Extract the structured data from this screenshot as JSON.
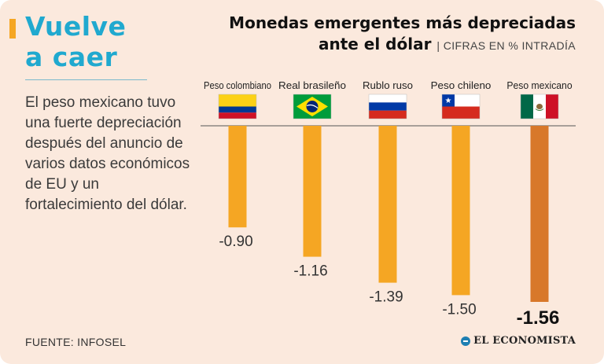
{
  "headline": {
    "line1": "Vuelve",
    "line2": "a caer"
  },
  "description": "El peso mexicano tuvo una fuerte depreciación después del anuncio de varios datos económicos de EU y un fortalecimiento del dólar.",
  "source": "FUENTE: INFOSEL",
  "logo_text": "EL ECONOMISTA",
  "colors": {
    "bar": "#f5a623",
    "highlight": "#d8782a",
    "headline": "#20a9cf"
  },
  "chart_data": {
    "type": "bar",
    "title_line1": "Monedas emergentes más depreciadas",
    "title_line2": "ante el dólar",
    "subtitle": "CIFRAS EN % INTRADÍA",
    "categories": [
      "Peso colombiano",
      "Real brasileño",
      "Rublo ruso",
      "Peso chileno",
      "Peso mexicano"
    ],
    "values": [
      -0.9,
      -1.16,
      -1.39,
      -1.5,
      -1.56
    ],
    "value_labels": [
      "-0.90",
      "-1.16",
      "-1.39",
      "-1.50",
      "-1.56"
    ],
    "flags": [
      "colombia",
      "brazil",
      "russia",
      "chile",
      "mexico"
    ],
    "highlight": "Peso mexicano",
    "ylim": [
      -1.56,
      0
    ],
    "xlabel": "",
    "ylabel": ""
  }
}
